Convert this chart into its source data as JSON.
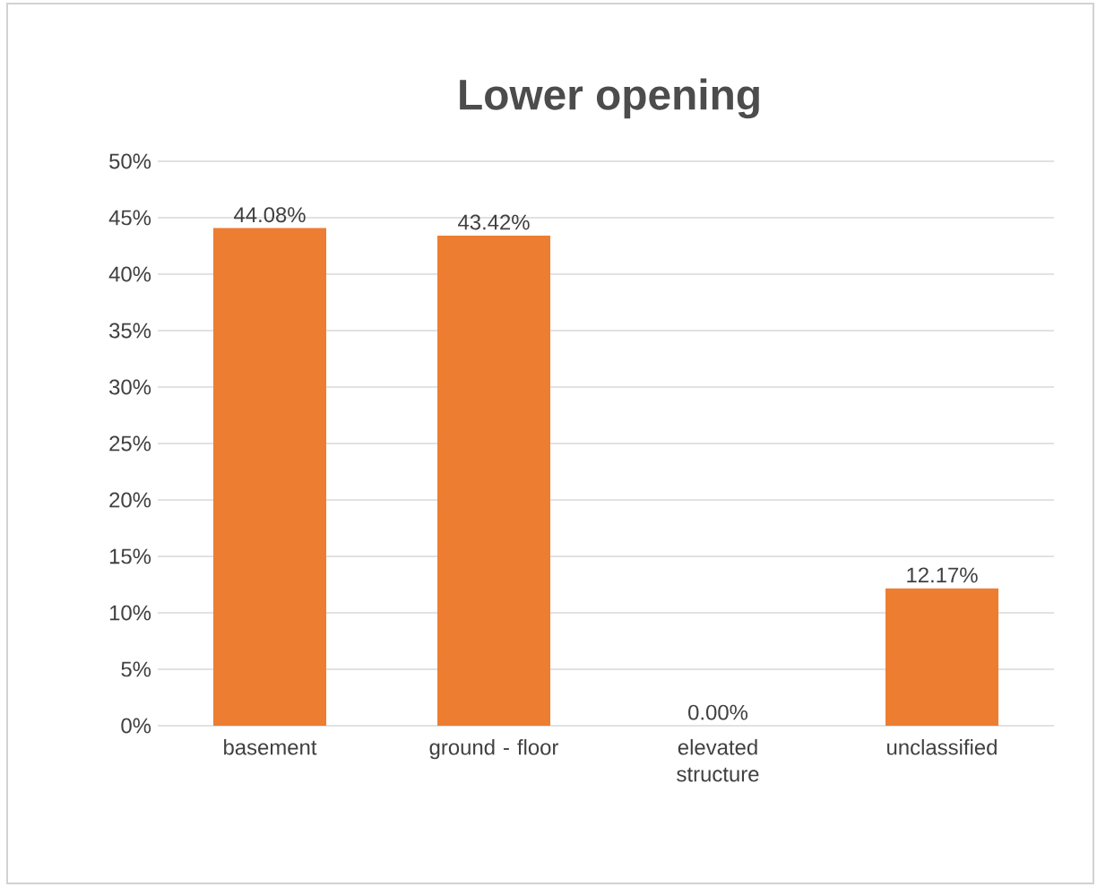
{
  "chart_data": {
    "type": "bar",
    "title": "Lower opening",
    "categories": [
      "basement",
      "ground - floor",
      "elevated structure",
      "unclassified"
    ],
    "values": [
      44.08,
      43.42,
      0.0,
      12.17
    ],
    "value_labels": [
      "44.08%",
      "43.42%",
      "0.00%",
      "12.17%"
    ],
    "color": "#ed7d31",
    "ylim": [
      0,
      50
    ],
    "yticks": [
      {
        "value": 0,
        "label": "0%"
      },
      {
        "value": 5,
        "label": "5%"
      },
      {
        "value": 10,
        "label": "10%"
      },
      {
        "value": 15,
        "label": "15%"
      },
      {
        "value": 20,
        "label": "20%"
      },
      {
        "value": 25,
        "label": "25%"
      },
      {
        "value": 30,
        "label": "30%"
      },
      {
        "value": 35,
        "label": "35%"
      },
      {
        "value": 40,
        "label": "40%"
      },
      {
        "value": 45,
        "label": "45%"
      },
      {
        "value": 50,
        "label": "50%"
      }
    ],
    "grid": "y"
  }
}
